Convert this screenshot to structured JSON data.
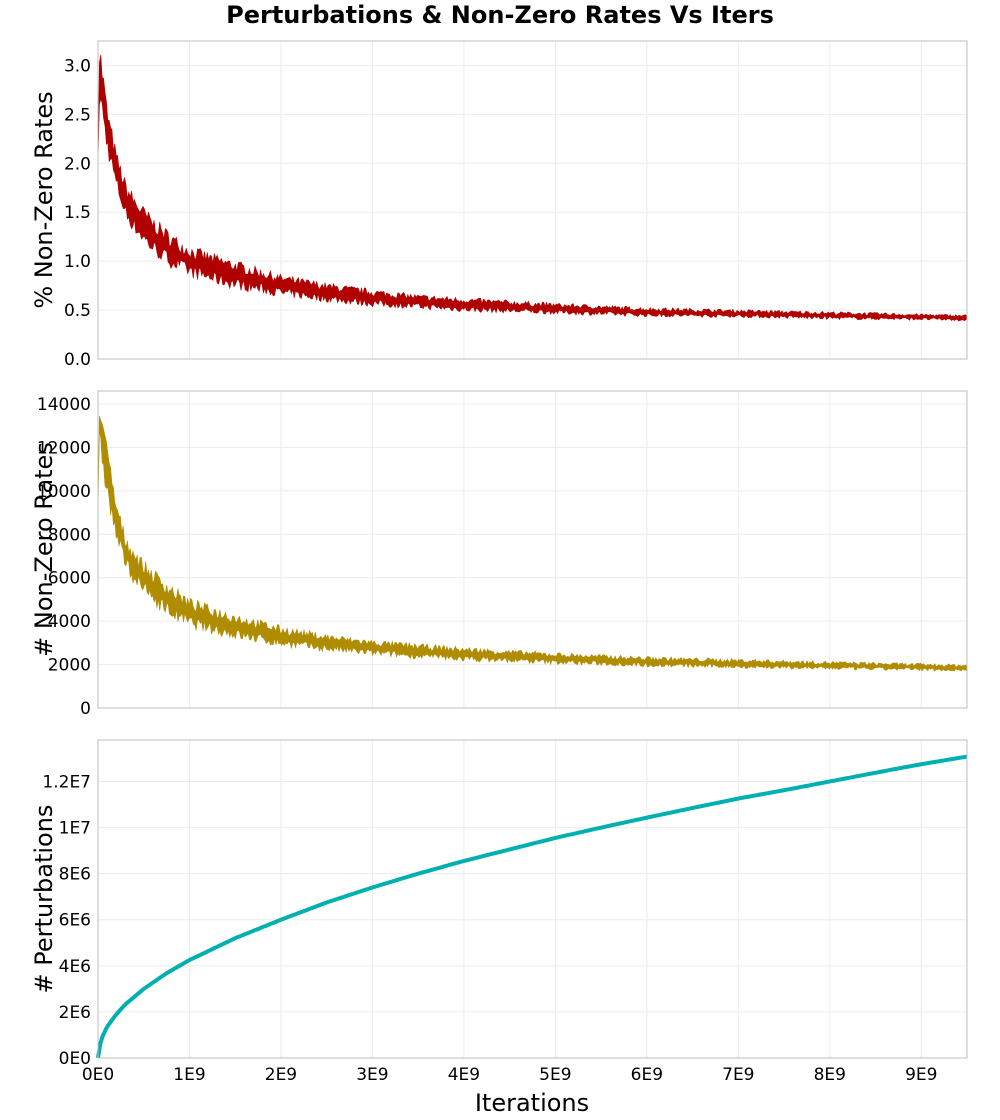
{
  "chart_data": {
    "title": "Perturbations & Non-Zero Rates Vs Iters",
    "xlabel": "Iterations",
    "x_ticks": [
      "0E0",
      "1E9",
      "2E9",
      "3E9",
      "4E9",
      "5E9",
      "6E9",
      "7E9",
      "8E9",
      "9E9"
    ],
    "xlim": [
      0,
      9500000000
    ],
    "grid": true,
    "panels": [
      {
        "type": "area",
        "ylabel": "% Non-Zero Rates",
        "ylim": [
          0,
          3.25
        ],
        "y_ticks": [
          0,
          0.5,
          1.0,
          1.5,
          2.0,
          2.5,
          3.0
        ],
        "y_tick_labels": [
          "0.0",
          "0.5",
          "1.0",
          "1.5",
          "2.0",
          "2.5",
          "3.0"
        ],
        "color": "#b00000",
        "series": [
          {
            "x": [
              0,
              10000000,
              30000000,
              100000000,
              200000000,
              300000000,
              400000000,
              500000000,
              600000000,
              800000000,
              1000000000,
              1250000000,
              1500000000,
              2000000000,
              2500000000,
              3000000000,
              3500000000,
              4000000000,
              5000000000,
              6000000000,
              7000000000,
              8000000000,
              9000000000,
              9500000000
            ],
            "upper": [
              2.05,
              3.1,
              3.05,
              2.5,
              2.05,
              1.75,
              1.6,
              1.48,
              1.38,
              1.22,
              1.1,
              1.02,
              0.95,
              0.82,
              0.74,
              0.68,
              0.63,
              0.6,
              0.55,
              0.51,
              0.49,
              0.47,
              0.45,
              0.44
            ],
            "lower": [
              2.0,
              2.7,
              2.65,
              2.2,
              1.8,
              1.5,
              1.36,
              1.24,
              1.14,
              1.0,
              0.9,
              0.83,
              0.77,
              0.68,
              0.62,
              0.57,
              0.54,
              0.51,
              0.48,
              0.45,
              0.44,
              0.42,
              0.41,
              0.4
            ]
          }
        ]
      },
      {
        "type": "area",
        "ylabel": "# Non-Zero Rates",
        "ylim": [
          0,
          14600
        ],
        "y_ticks": [
          0,
          2000,
          4000,
          6000,
          8000,
          10000,
          12000,
          14000
        ],
        "y_tick_labels": [
          "0",
          "2000",
          "4000",
          "6000",
          "8000",
          "10000",
          "12000",
          "14000"
        ],
        "color": "#b08d00",
        "series": [
          {
            "x": [
              0,
              10000000,
              30000000,
              100000000,
              200000000,
              300000000,
              400000000,
              500000000,
              600000000,
              800000000,
              1000000000,
              1250000000,
              1500000000,
              2000000000,
              2500000000,
              3000000000,
              3500000000,
              4000000000,
              5000000000,
              6000000000,
              7000000000,
              8000000000,
              9000000000,
              9500000000
            ],
            "upper": [
              9200,
              13900,
              13700,
              11600,
              9200,
              7700,
              7050,
              6500,
              6100,
              5400,
              4800,
              4450,
              4150,
              3600,
              3250,
              3000,
              2830,
              2680,
              2450,
              2280,
              2180,
              2080,
              1990,
              1950
            ],
            "lower": [
              9000,
              12300,
              12100,
              10000,
              8000,
              6700,
              6000,
              5500,
              5100,
              4400,
              3950,
              3650,
              3400,
              3000,
              2750,
              2550,
              2400,
              2280,
              2120,
              1990,
              1910,
              1840,
              1780,
              1750
            ]
          }
        ]
      },
      {
        "type": "line",
        "ylabel": "# Perturbations",
        "ylim": [
          0,
          13800000
        ],
        "y_ticks": [
          0,
          2000000,
          4000000,
          6000000,
          8000000,
          10000000,
          12000000
        ],
        "y_tick_labels": [
          "0E0",
          "2E6",
          "4E6",
          "6E6",
          "8E6",
          "1E7",
          "1.2E7"
        ],
        "color": "#00b0b0",
        "series": [
          {
            "x": [
              0,
              10000000,
              50000000,
              100000000,
              200000000,
              300000000,
              500000000,
              750000000,
              1000000000,
              1500000000,
              2000000000,
              2500000000,
              3000000000,
              3500000000,
              4000000000,
              4500000000,
              5000000000,
              5500000000,
              6000000000,
              6500000000,
              7000000000,
              7500000000,
              8000000000,
              8500000000,
              9000000000,
              9500000000
            ],
            "y": [
              0,
              420000,
              940000,
              1360000,
              1900000,
              2330000,
              3000000,
              3680000,
              4250000,
              5200000,
              6000000,
              6750000,
              7400000,
              8000000,
              8550000,
              9050000,
              9550000,
              10000000,
              10430000,
              10850000,
              11260000,
              11620000,
              12000000,
              12380000,
              12750000,
              13080000
            ]
          }
        ]
      }
    ]
  }
}
